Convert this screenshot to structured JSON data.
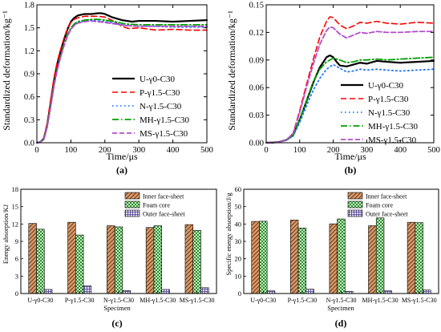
{
  "chart_data": [
    {
      "id": "a",
      "type": "line",
      "caption": "(a)",
      "xlabel": "Time/μs",
      "ylabel": "Standardized deformation/kg⁻¹",
      "xlim": [
        0,
        500
      ],
      "ylim": [
        0,
        1.8
      ],
      "xticks": [
        0,
        100,
        200,
        300,
        400,
        500
      ],
      "yticks": [
        0.0,
        0.3,
        0.6,
        0.9,
        1.2,
        1.5,
        1.8
      ],
      "ytick_labels": [
        "0.0",
        "0.3",
        "0.6",
        "0.9",
        "1.2",
        "1.5",
        "1.8"
      ],
      "legend_position": "center-right",
      "series": [
        {
          "name": "U-γ0-C30",
          "color": "#000000",
          "dash": "solid",
          "width": 2.2,
          "x": [
            0,
            10,
            20,
            30,
            40,
            50,
            60,
            70,
            80,
            90,
            100,
            110,
            120,
            140,
            160,
            180,
            190,
            200,
            220,
            250,
            280,
            300,
            350,
            400,
            450,
            500
          ],
          "y": [
            0,
            0.01,
            0.05,
            0.22,
            0.5,
            0.8,
            1.03,
            1.2,
            1.35,
            1.48,
            1.58,
            1.63,
            1.66,
            1.68,
            1.68,
            1.69,
            1.69,
            1.68,
            1.64,
            1.6,
            1.58,
            1.59,
            1.59,
            1.58,
            1.59,
            1.6
          ]
        },
        {
          "name": "P-γ1.5-C30",
          "color": "#ff0000",
          "dash": "7,4",
          "width": 1.6,
          "x": [
            0,
            10,
            20,
            30,
            40,
            50,
            60,
            70,
            80,
            90,
            100,
            110,
            120,
            140,
            160,
            180,
            200,
            220,
            250,
            270,
            300,
            350,
            400,
            450,
            500
          ],
          "y": [
            0,
            0.01,
            0.06,
            0.25,
            0.55,
            0.84,
            1.06,
            1.22,
            1.37,
            1.49,
            1.57,
            1.61,
            1.63,
            1.65,
            1.65,
            1.65,
            1.64,
            1.6,
            1.52,
            1.49,
            1.5,
            1.47,
            1.48,
            1.47,
            1.47
          ]
        },
        {
          "name": "N-γ1.5-C30",
          "color": "#1f77ff",
          "dash": "1.5,3.5",
          "width": 1.8,
          "x": [
            0,
            10,
            20,
            30,
            40,
            50,
            60,
            70,
            80,
            90,
            100,
            110,
            120,
            140,
            160,
            180,
            200,
            230,
            260,
            300,
            350,
            400,
            450,
            500
          ],
          "y": [
            0,
            0.01,
            0.04,
            0.2,
            0.46,
            0.74,
            0.96,
            1.13,
            1.28,
            1.4,
            1.49,
            1.54,
            1.57,
            1.59,
            1.6,
            1.59,
            1.58,
            1.56,
            1.53,
            1.52,
            1.52,
            1.51,
            1.51,
            1.51
          ]
        },
        {
          "name": "MH-γ1.5-C30",
          "color": "#00a000",
          "dash": "8,3,1.5,3",
          "width": 1.8,
          "x": [
            0,
            10,
            20,
            30,
            40,
            50,
            60,
            70,
            80,
            90,
            100,
            110,
            120,
            140,
            160,
            180,
            200,
            230,
            260,
            300,
            350,
            400,
            450,
            500
          ],
          "y": [
            0,
            0.01,
            0.04,
            0.21,
            0.47,
            0.75,
            0.97,
            1.14,
            1.29,
            1.41,
            1.5,
            1.55,
            1.58,
            1.6,
            1.61,
            1.61,
            1.6,
            1.58,
            1.55,
            1.54,
            1.54,
            1.54,
            1.54,
            1.54
          ]
        },
        {
          "name": "MS-γ1.5-C30",
          "color": "#b24dcc",
          "dash": "6,3",
          "width": 1.8,
          "x": [
            0,
            10,
            20,
            30,
            40,
            50,
            60,
            70,
            80,
            90,
            100,
            110,
            120,
            140,
            160,
            180,
            200,
            230,
            260,
            300,
            350,
            400,
            450,
            500
          ],
          "y": [
            0,
            0.01,
            0.04,
            0.2,
            0.45,
            0.73,
            0.95,
            1.12,
            1.27,
            1.39,
            1.48,
            1.53,
            1.56,
            1.58,
            1.59,
            1.58,
            1.57,
            1.55,
            1.53,
            1.52,
            1.52,
            1.52,
            1.52,
            1.52
          ]
        }
      ]
    },
    {
      "id": "b",
      "type": "line",
      "caption": "(b)",
      "xlabel": "Time/μs",
      "ylabel": "Standardized deformation/kg⁻¹",
      "xlim": [
        0,
        500
      ],
      "ylim": [
        0,
        0.15
      ],
      "xticks": [
        0,
        100,
        200,
        300,
        400,
        500
      ],
      "yticks": [
        0.0,
        0.03,
        0.06,
        0.09,
        0.12,
        0.15
      ],
      "ytick_labels": [
        "0.00",
        "0.03",
        "0.06",
        "0.09",
        "0.12",
        "0.15"
      ],
      "legend_position": "bottom-right",
      "series": [
        {
          "name": "U-γ0-C30",
          "color": "#000000",
          "dash": "solid",
          "width": 2.2,
          "x": [
            0,
            20,
            40,
            60,
            80,
            100,
            120,
            140,
            160,
            180,
            190,
            200,
            210,
            220,
            240,
            260,
            280,
            300,
            330,
            360,
            400,
            450,
            500
          ],
          "y": [
            0,
            0.0002,
            0.001,
            0.003,
            0.008,
            0.025,
            0.045,
            0.065,
            0.082,
            0.093,
            0.095,
            0.093,
            0.088,
            0.084,
            0.083,
            0.085,
            0.087,
            0.086,
            0.089,
            0.088,
            0.087,
            0.088,
            0.089
          ]
        },
        {
          "name": "P-γ1.5-C30",
          "color": "#ff0000",
          "dash": "7,4",
          "width": 1.6,
          "x": [
            0,
            20,
            40,
            60,
            80,
            100,
            120,
            140,
            160,
            180,
            190,
            200,
            220,
            240,
            260,
            280,
            300,
            330,
            360,
            400,
            450,
            500
          ],
          "y": [
            0,
            0.0002,
            0.001,
            0.003,
            0.01,
            0.035,
            0.063,
            0.09,
            0.115,
            0.132,
            0.137,
            0.136,
            0.128,
            0.124,
            0.127,
            0.131,
            0.13,
            0.132,
            0.13,
            0.129,
            0.131,
            0.13
          ]
        },
        {
          "name": "N-γ1.5-C30",
          "color": "#1f77ff",
          "dash": "1.5,3.5",
          "width": 1.8,
          "x": [
            0,
            20,
            40,
            60,
            80,
            100,
            120,
            140,
            160,
            180,
            200,
            220,
            240,
            260,
            280,
            300,
            330,
            360,
            400,
            450,
            500
          ],
          "y": [
            0,
            0.0002,
            0.001,
            0.003,
            0.007,
            0.022,
            0.04,
            0.057,
            0.07,
            0.08,
            0.085,
            0.081,
            0.077,
            0.078,
            0.08,
            0.079,
            0.08,
            0.079,
            0.078,
            0.079,
            0.08
          ]
        },
        {
          "name": "MH-γ1.5-C30",
          "color": "#00a000",
          "dash": "8,3,1.5,3",
          "width": 1.8,
          "x": [
            0,
            20,
            40,
            60,
            80,
            100,
            120,
            140,
            160,
            180,
            200,
            220,
            240,
            260,
            280,
            300,
            330,
            360,
            400,
            450,
            500
          ],
          "y": [
            0,
            0.0002,
            0.001,
            0.003,
            0.008,
            0.025,
            0.046,
            0.066,
            0.08,
            0.088,
            0.092,
            0.09,
            0.087,
            0.088,
            0.09,
            0.09,
            0.091,
            0.09,
            0.091,
            0.092,
            0.093
          ]
        },
        {
          "name": "MS-γ1.5-C30",
          "color": "#b24dcc",
          "dash": "6,3",
          "width": 1.8,
          "x": [
            0,
            20,
            40,
            60,
            80,
            100,
            120,
            140,
            160,
            180,
            190,
            200,
            220,
            240,
            260,
            280,
            300,
            330,
            360,
            400,
            450,
            500
          ],
          "y": [
            0,
            0.0002,
            0.001,
            0.003,
            0.01,
            0.033,
            0.06,
            0.085,
            0.107,
            0.122,
            0.126,
            0.125,
            0.118,
            0.114,
            0.117,
            0.12,
            0.119,
            0.121,
            0.12,
            0.12,
            0.121,
            0.121
          ]
        }
      ]
    },
    {
      "id": "c",
      "type": "bar",
      "caption": "(c)",
      "xlabel": "Specimen",
      "ylabel": "Energy absorption/KJ",
      "ylim": [
        0,
        18
      ],
      "yticks": [
        0,
        3,
        6,
        9,
        12,
        15,
        18
      ],
      "legend_position": "top-right",
      "categories": [
        "U-γ0-C30",
        "P-γ1.5-C30",
        "N-γ1.5-C30",
        "MH-γ1.5-C30",
        "MS-γ1.5-C30"
      ],
      "series": [
        {
          "name": "Inner face-sheet",
          "pattern": "diag",
          "values": [
            12.1,
            12.3,
            11.7,
            11.4,
            11.9
          ]
        },
        {
          "name": "Foam core",
          "pattern": "check",
          "values": [
            11.1,
            10.1,
            11.5,
            11.7,
            10.9
          ]
        },
        {
          "name": "Outer face-sheet",
          "pattern": "grid",
          "values": [
            0.7,
            1.3,
            0.5,
            0.7,
            1.0
          ]
        }
      ]
    },
    {
      "id": "d",
      "type": "bar",
      "caption": "(d)",
      "xlabel": "Specimen",
      "ylabel": "Specific energy absorption/J/g",
      "ylim": [
        0,
        60
      ],
      "yticks": [
        0,
        10,
        20,
        30,
        40,
        50,
        60
      ],
      "legend_position": "top-right",
      "categories": [
        "U-γ0-C30",
        "P-γ1.5-C30",
        "N-γ1.5-C30",
        "MH-γ1.5-C30",
        "MS-γ1.5-C30"
      ],
      "series": [
        {
          "name": "Inner face-sheet",
          "pattern": "diag",
          "values": [
            41.5,
            42.3,
            40.1,
            39.0,
            41.0
          ]
        },
        {
          "name": "Foam core",
          "pattern": "check",
          "values": [
            41.6,
            37.7,
            42.9,
            43.5,
            40.8
          ]
        },
        {
          "name": "Outer face-sheet",
          "pattern": "grid",
          "values": [
            1.5,
            2.5,
            1.2,
            1.5,
            2.0
          ]
        }
      ]
    }
  ]
}
